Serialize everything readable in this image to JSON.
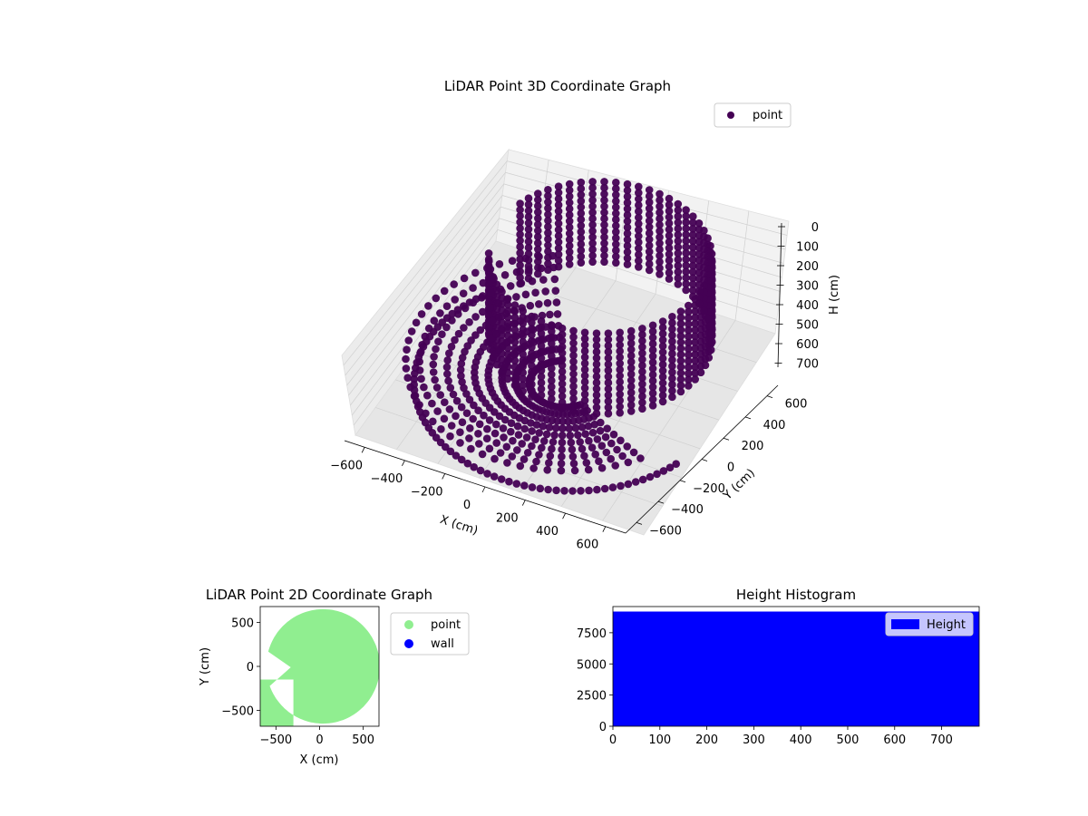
{
  "chart_data": [
    {
      "type": "scatter",
      "title": "LiDAR Point 3D Coordinate Graph",
      "projection": "3d",
      "xlabel": "X (cm)",
      "ylabel": "Y (cm)",
      "zlabel": "H (cm)",
      "xlim": [
        -700,
        700
      ],
      "ylim": [
        -700,
        700
      ],
      "zlim": [
        0,
        780
      ],
      "z_inverted": true,
      "xticks": [
        "−600",
        "−400",
        "−200",
        "0",
        "200",
        "400",
        "600"
      ],
      "yticks": [
        "−600",
        "−400",
        "−200",
        "0",
        "200",
        "400",
        "600"
      ],
      "zticks": [
        "0",
        "100",
        "200",
        "300",
        "400",
        "500",
        "600",
        "700"
      ],
      "grid": true,
      "legend": {
        "position": "top-right",
        "entries": [
          {
            "name": "point",
            "color": "#440154"
          }
        ]
      },
      "series": [
        {
          "name": "point",
          "color": "#440154",
          "shape": "hemispherical scan: circular wall of radius ~650 cm plus curved floor sweep",
          "radius": 650,
          "max_height": 780,
          "open_sector_deg": [
            165,
            200
          ]
        }
      ]
    },
    {
      "type": "scatter",
      "title": "LiDAR Point 2D Coordinate Graph",
      "xlabel": "X (cm)",
      "ylabel": "Y (cm)",
      "xlim": [
        -680,
        680
      ],
      "ylim": [
        -680,
        680
      ],
      "xticks": [
        "−500",
        "0",
        "500"
      ],
      "yticks": [
        "−500",
        "0",
        "500"
      ],
      "legend": {
        "position": "outside-right",
        "entries": [
          {
            "name": "point",
            "color": "#90ee90"
          },
          {
            "name": "wall",
            "color": "#0000ff"
          }
        ]
      },
      "series": [
        {
          "name": "point",
          "color": "#90ee90",
          "radius": 650,
          "open_sector_deg": [
            165,
            200
          ]
        },
        {
          "name": "wall",
          "color": "#0000ff",
          "values": []
        }
      ]
    },
    {
      "type": "bar",
      "title": "Height Histogram",
      "xlim": [
        0,
        780
      ],
      "ylim": [
        0,
        9600
      ],
      "xticks": [
        "0",
        "100",
        "200",
        "300",
        "400",
        "500",
        "600",
        "700"
      ],
      "yticks": [
        "0",
        "2500",
        "5000",
        "7500"
      ],
      "legend": {
        "position": "top-right",
        "entries": [
          {
            "name": "Height",
            "color": "#0000ff"
          }
        ]
      },
      "series": [
        {
          "name": "Height",
          "color": "#0000ff",
          "bin_range": [
            0,
            780
          ],
          "value": 9200
        }
      ]
    }
  ]
}
